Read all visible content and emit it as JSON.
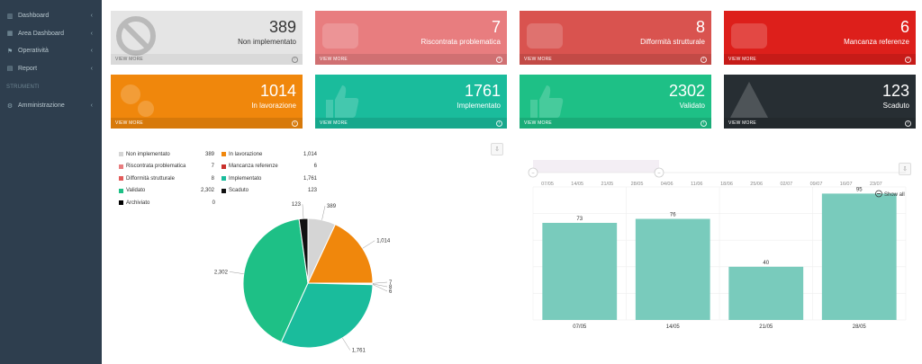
{
  "sidebar": {
    "items": [
      {
        "label": "Dashboard",
        "icon": "bar-chart-icon",
        "glyph": "▥"
      },
      {
        "label": "Area Dashboard",
        "icon": "table-icon",
        "glyph": "▦"
      },
      {
        "label": "Operatività",
        "icon": "flag-icon",
        "glyph": "⚑"
      },
      {
        "label": "Report",
        "icon": "file-icon",
        "glyph": "▤"
      }
    ],
    "section_header": "STRUMENTI",
    "tools": [
      {
        "label": "Amministrazione",
        "icon": "gear-icon",
        "glyph": "⚙"
      }
    ],
    "chevron": "‹"
  },
  "tiles": [
    {
      "value": "389",
      "label": "Non implementato",
      "footer": "VIEW MORE",
      "color": "#e5e5e5"
    },
    {
      "value": "7",
      "label": "Riscontrata problematica",
      "footer": "VIEW MORE",
      "color": "#e87d7f"
    },
    {
      "value": "8",
      "label": "Difformità strutturale",
      "footer": "VIEW MORE",
      "color": "#d9534f"
    },
    {
      "value": "6",
      "label": "Mancanza referenze",
      "footer": "VIEW MORE",
      "color": "#dd1f1b"
    },
    {
      "value": "1014",
      "label": "In lavorazione",
      "footer": "VIEW MORE",
      "color": "#f0870c"
    },
    {
      "value": "1761",
      "label": "Implementato",
      "footer": "VIEW MORE",
      "color": "#1abc9c"
    },
    {
      "value": "2302",
      "label": "Validato",
      "footer": "VIEW MORE",
      "color": "#1ec086"
    },
    {
      "value": "123",
      "label": "Scaduto",
      "footer": "VIEW MORE",
      "color": "#272e33"
    }
  ],
  "legend": [
    [
      {
        "name": "Non implementato",
        "value": "389",
        "color": "#d5d5d5"
      },
      {
        "name": "In lavorazione",
        "value": "1,014",
        "color": "#f0870c"
      }
    ],
    [
      {
        "name": "Riscontrata problematica",
        "value": "7",
        "color": "#e87d7f"
      },
      {
        "name": "Mancanza referenze",
        "value": "6",
        "color": "#c9302c"
      }
    ],
    [
      {
        "name": "Difformità strutturale",
        "value": "8",
        "color": "#e35b5a"
      },
      {
        "name": "Implementato",
        "value": "1,761",
        "color": "#1abc9c"
      }
    ],
    [
      {
        "name": "Validato",
        "value": "2,302",
        "color": "#1ec086"
      },
      {
        "name": "Scaduto",
        "value": "123",
        "color": "#111111"
      }
    ],
    [
      {
        "name": "Archiviato",
        "value": "0",
        "color": "#000000"
      }
    ]
  ],
  "export_glyph": "⇩",
  "show_all_label": "Show all",
  "chart_data": [
    {
      "type": "pie",
      "title": "",
      "slices": [
        {
          "name": "Non implementato",
          "value": 389,
          "label": "389",
          "color": "#d5d5d5"
        },
        {
          "name": "In lavorazione",
          "value": 1014,
          "label": "1,014",
          "color": "#f0870c"
        },
        {
          "name": "Riscontrata problematica",
          "value": 7,
          "label": "7",
          "color": "#e87d7f"
        },
        {
          "name": "Difformità strutturale",
          "value": 8,
          "label": "8",
          "color": "#e35b5a"
        },
        {
          "name": "Mancanza referenze",
          "value": 6,
          "label": "6",
          "color": "#c9302c"
        },
        {
          "name": "Implementato",
          "value": 1761,
          "label": "1,761",
          "color": "#1abc9c"
        },
        {
          "name": "Validato",
          "value": 2302,
          "label": "2,302",
          "color": "#1ec086"
        },
        {
          "name": "Scaduto",
          "value": 123,
          "label": "123",
          "color": "#111111"
        },
        {
          "name": "Archiviato",
          "value": 0,
          "label": "",
          "color": "#000000"
        }
      ]
    },
    {
      "type": "bar",
      "title": "",
      "categories": [
        "07/05",
        "14/05",
        "21/05",
        "28/05"
      ],
      "values": [
        73,
        76,
        40,
        95
      ],
      "ylim": [
        0,
        100
      ],
      "color": "#79cbbc",
      "navigator_ticks": [
        "07/05",
        "14/05",
        "21/05",
        "28/05",
        "04/06",
        "11/06",
        "18/06",
        "25/06",
        "02/07",
        "09/07",
        "16/07",
        "23/07"
      ]
    }
  ]
}
